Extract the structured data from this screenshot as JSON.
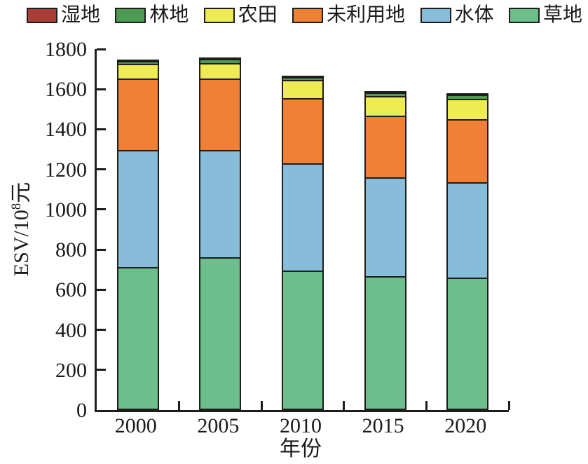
{
  "axes": {
    "ylabel_base": "ESV/10",
    "ylabel_sup": "8",
    "ylabel_unit": "元",
    "xlabel": "年份"
  },
  "colors": {
    "edge": "#1d1d1b",
    "text": "#1a1a1a",
    "background": "#ffffff"
  },
  "chart_data": {
    "type": "bar",
    "stacked": true,
    "title": "",
    "xlabel": "年份",
    "ylabel": "ESV/10^8元",
    "ylim": [
      0,
      1800
    ],
    "yticks": [
      0,
      200,
      400,
      600,
      800,
      1000,
      1200,
      1400,
      1600,
      1800
    ],
    "grid": false,
    "legend_position": "top",
    "categories": [
      "2000",
      "2005",
      "2010",
      "2015",
      "2020"
    ],
    "series": [
      {
        "name": "湿地",
        "color": "#A93E36",
        "values": [
          5,
          5,
          5,
          5,
          5
        ]
      },
      {
        "name": "林地",
        "color": "#4C9B50",
        "values": [
          15,
          20,
          15,
          15,
          20
        ]
      },
      {
        "name": "农田",
        "color": "#EEEB55",
        "values": [
          75,
          80,
          90,
          100,
          100
        ]
      },
      {
        "name": "未利用地",
        "color": "#F08036",
        "values": [
          355,
          355,
          325,
          305,
          315
        ]
      },
      {
        "name": "水体",
        "color": "#87BDDB",
        "values": [
          585,
          535,
          535,
          495,
          475
        ]
      },
      {
        "name": "草地",
        "color": "#6CBE8B",
        "values": [
          705,
          755,
          690,
          660,
          655
        ]
      }
    ]
  }
}
